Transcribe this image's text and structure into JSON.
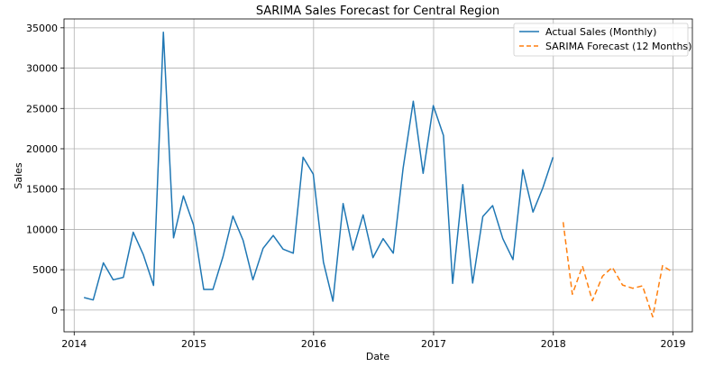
{
  "chart_data": {
    "type": "line",
    "title": "SARIMA Sales Forecast for Central Region",
    "xlabel": "Date",
    "ylabel": "Sales",
    "xlim": [
      "2013-12-01",
      "2019-03-01"
    ],
    "ylim": [
      -2700,
      36100
    ],
    "xticks": [
      {
        "date": "2014-01-01",
        "label": "2014"
      },
      {
        "date": "2015-01-01",
        "label": "2015"
      },
      {
        "date": "2016-01-01",
        "label": "2016"
      },
      {
        "date": "2017-01-01",
        "label": "2017"
      },
      {
        "date": "2018-01-01",
        "label": "2018"
      },
      {
        "date": "2019-01-01",
        "label": "2019"
      }
    ],
    "yticks": [
      0,
      5000,
      10000,
      15000,
      20000,
      25000,
      30000,
      35000
    ],
    "grid": true,
    "legend_position": "top-right",
    "series": [
      {
        "name": "Actual Sales (Monthly)",
        "color": "#1f77b4",
        "style": "solid",
        "x": [
          "2014-01-31",
          "2014-02-28",
          "2014-03-31",
          "2014-04-30",
          "2014-05-31",
          "2014-06-30",
          "2014-07-31",
          "2014-08-31",
          "2014-09-30",
          "2014-10-31",
          "2014-11-30",
          "2014-12-31",
          "2015-01-31",
          "2015-02-28",
          "2015-03-31",
          "2015-04-30",
          "2015-05-31",
          "2015-06-30",
          "2015-07-31",
          "2015-08-31",
          "2015-09-30",
          "2015-10-31",
          "2015-11-30",
          "2015-12-31",
          "2016-01-31",
          "2016-02-29",
          "2016-03-31",
          "2016-04-30",
          "2016-05-31",
          "2016-06-30",
          "2016-07-31",
          "2016-08-31",
          "2016-09-30",
          "2016-10-31",
          "2016-11-30",
          "2016-12-31",
          "2017-01-31",
          "2017-02-28",
          "2017-03-31",
          "2017-04-30",
          "2017-05-31",
          "2017-06-30",
          "2017-07-31",
          "2017-08-31",
          "2017-09-30",
          "2017-10-31",
          "2017-11-30",
          "2017-12-31"
        ],
        "y": [
          1550,
          1250,
          5850,
          3750,
          4050,
          9650,
          6850,
          3050,
          34450,
          8950,
          14150,
          10550,
          2550,
          2550,
          6650,
          11650,
          8650,
          3750,
          7650,
          9250,
          7550,
          7050,
          18950,
          16850,
          5950,
          1100,
          13200,
          7450,
          11800,
          6500,
          8850,
          7050,
          17600,
          25900,
          16950,
          25350,
          21650,
          3300,
          15550,
          3350,
          11600,
          12950,
          8850,
          6250,
          17400,
          12150,
          15150,
          18950
        ]
      },
      {
        "name": "SARIMA Forecast (12 Months)",
        "color": "#ff7f0e",
        "style": "dashed",
        "x": [
          "2018-01-31",
          "2018-02-28",
          "2018-03-31",
          "2018-04-30",
          "2018-05-31",
          "2018-06-30",
          "2018-07-31",
          "2018-08-31",
          "2018-09-30",
          "2018-10-31",
          "2018-11-30",
          "2018-12-31"
        ],
        "y": [
          10900,
          1950,
          5450,
          1150,
          4200,
          5300,
          3100,
          2700,
          3000,
          -850,
          5500,
          4700
        ]
      }
    ]
  }
}
